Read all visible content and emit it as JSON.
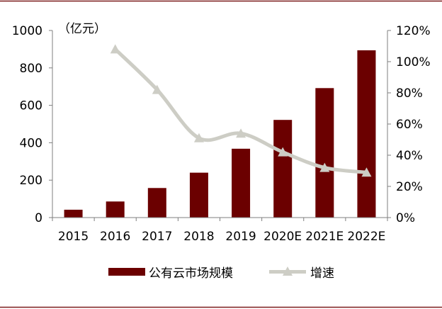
{
  "chart_data": {
    "type": "bar+line",
    "categories": [
      "2015",
      "2016",
      "2017",
      "2018",
      "2019",
      "2020E",
      "2021E",
      "2022E"
    ],
    "series": [
      {
        "name": "公有云市场规模",
        "type": "bar",
        "axis": "left",
        "color": "#6b0000",
        "values": [
          42,
          86,
          158,
          240,
          368,
          522,
          692,
          894
        ]
      },
      {
        "name": "增速",
        "type": "line",
        "axis": "right",
        "color": "#cdcdc5",
        "values": [
          null,
          108,
          82,
          51,
          54,
          42,
          32,
          29
        ]
      }
    ],
    "left_axis": {
      "unit": "（亿元）",
      "ylim": [
        0,
        1000
      ],
      "ticks": [
        "0",
        "200",
        "400",
        "600",
        "800",
        "1000"
      ]
    },
    "right_axis": {
      "ylim": [
        0,
        120
      ],
      "ticks": [
        "0%",
        "20%",
        "40%",
        "60%",
        "80%",
        "100%",
        "120%"
      ]
    },
    "grid": false,
    "legend_position": "bottom",
    "frame_color": "#7b1a1a"
  }
}
